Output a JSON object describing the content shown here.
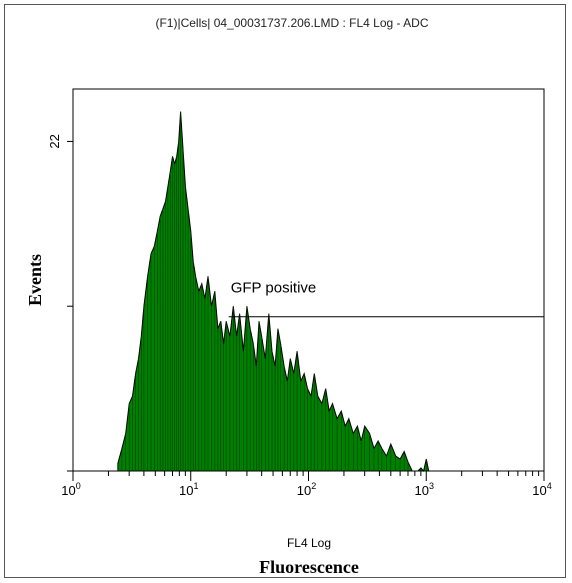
{
  "chart_data": {
    "type": "histogram",
    "title": "(F1)|Cells| 04_00031737.206.LMD : FL4 Log - ADC",
    "xlabel_channel": "FL4 Log",
    "xlabel": "Fluorescence",
    "ylabel": "Events",
    "x_scale": "log",
    "xlim": [
      1,
      10000
    ],
    "ylim": [
      0,
      25.5
    ],
    "x_ticks": [
      {
        "exp": "0",
        "value": 1
      },
      {
        "exp": "1",
        "value": 10
      },
      {
        "exp": "2",
        "value": 100
      },
      {
        "exp": "3",
        "value": 1000
      },
      {
        "exp": "4",
        "value": 10000
      }
    ],
    "y_ticks": [
      {
        "label": "",
        "value": 0
      },
      {
        "label": "",
        "value": 11
      },
      {
        "label": "22",
        "value": 22
      }
    ],
    "fill_color": "#008000",
    "gate": {
      "label": "GFP positive",
      "x_start": 21,
      "x_end": 10000,
      "y": 10.3
    },
    "series": [
      {
        "x": [
          2.4,
          2.6,
          2.8,
          3.0,
          3.2,
          3.4,
          3.6,
          3.8,
          4.0,
          4.3,
          4.6,
          4.9,
          5.2,
          5.5,
          5.8,
          6.1,
          6.4,
          6.7,
          7.0,
          7.3,
          7.6,
          7.9,
          8.2,
          8.6,
          9.0,
          9.5,
          10,
          10.5,
          11,
          11.7,
          12.4,
          13.2,
          14,
          15,
          16,
          17,
          18,
          19,
          20,
          21.5,
          23,
          24.5,
          26,
          28,
          30,
          32,
          34,
          36,
          38,
          40,
          43,
          46,
          49,
          52,
          55,
          58,
          62,
          66,
          70,
          75,
          80,
          86,
          92,
          98,
          105,
          112,
          120,
          130,
          140,
          150,
          160,
          175,
          190,
          205,
          220,
          240,
          260,
          280,
          300,
          330,
          360,
          390,
          420,
          460,
          500,
          550,
          600,
          650,
          700,
          760,
          800,
          850,
          900,
          950,
          1000,
          1050,
          1100
        ],
        "y": [
          0.5,
          1.5,
          2.5,
          4.5,
          5,
          6.5,
          7.5,
          9,
          11,
          13,
          14.5,
          15,
          16,
          17,
          17.5,
          18,
          19,
          20,
          21,
          20.5,
          21,
          22,
          24,
          21.5,
          19,
          17.5,
          16,
          14,
          13,
          12,
          12.5,
          11.5,
          13,
          11,
          12,
          9.5,
          10,
          8.5,
          10,
          9,
          11,
          9,
          10.5,
          8,
          11,
          9.5,
          8.5,
          7,
          10,
          9,
          7.5,
          10.5,
          8,
          7,
          9.5,
          8.5,
          7,
          6,
          7.5,
          6.5,
          8,
          6,
          6.5,
          5.5,
          5,
          6.5,
          5,
          4.5,
          5.5,
          4,
          4.5,
          3.5,
          4,
          3,
          3.5,
          2.5,
          3,
          2,
          3,
          2.5,
          1.5,
          2,
          1.5,
          1,
          1.8,
          1,
          0.8,
          1.3,
          0.6,
          0,
          0,
          0,
          0.2,
          0,
          0.8,
          0,
          0
        ]
      }
    ]
  }
}
